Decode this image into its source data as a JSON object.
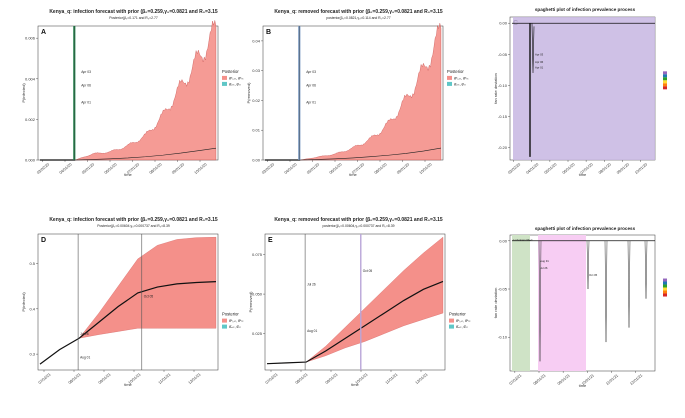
{
  "chart_data": [
    {
      "letter": "A",
      "type": "area",
      "title": "Kenya_q: infection forecast with prior (β₀=0.259,γ₀=0.0821 and R₀=3.15",
      "subtitle": "Posterior(β₀=0.171 and R₀=2.77",
      "xlabel": "time",
      "ylabel": "P(infected)",
      "x_ticks": [
        "03/02/20",
        "04/01/20",
        "05/01/20",
        "06/01/20",
        "07/01/20",
        "08/01/20",
        "09/01/20",
        "10/01/20"
      ],
      "y_ticks": [
        "0.000",
        "0.002",
        "0.004",
        "0.006"
      ],
      "ylim": [
        0,
        0.0066
      ],
      "annotations": [
        "Apr 03",
        "Apr 06",
        "Apr 01"
      ],
      "legend_title": "Posterior",
      "legend_entries": [
        "θ̂ᵇ₀ₛₜ, θ̂ᵇₛₜ",
        "θ̂ₒₛₜ, θ̂ₛₜ"
      ],
      "series": [
        {
          "values": [
            0,
            0,
            0,
            0.0003,
            0.0004,
            0.0007,
            0.0012,
            0.0022,
            0.0036,
            0.005,
            0.0064
          ]
        },
        {
          "values": [
            0,
            0,
            0,
            3e-05,
            6e-05,
            0.0001,
            0.00016,
            0.00024,
            0.00034,
            0.00046,
            0.00058
          ]
        }
      ]
    },
    {
      "letter": "B",
      "type": "area",
      "title": "Kenya_q: removed forecast with prior (β₀=0.259,γ₀=0.0821 and R₀=3.15",
      "subtitle": "posterior(β₀=0.0821,γ₀=0.114 and R₀=2.77",
      "xlabel": "time",
      "ylabel": "P(removed)",
      "x_ticks": [
        "03/02/20",
        "04/01/20",
        "05/01/20",
        "06/01/20",
        "07/01/20",
        "08/01/20",
        "09/01/20",
        "10/01/20"
      ],
      "y_ticks": [
        "0.00",
        "0.01",
        "0.02",
        "0.03",
        "0.04"
      ],
      "ylim": [
        0,
        0.045
      ],
      "annotations": [
        "Apr 03",
        "Apr 06",
        "Apr 01"
      ],
      "legend_title": "Posterior",
      "legend_entries": [
        "θ̂ᵇ₀ₛₜ, θ̂ᵇₛₜ",
        "θ̂ₒₛₜ, θ̂ₛₜ"
      ],
      "series": [
        {
          "values": [
            0,
            0,
            0,
            0.001,
            0.002,
            0.004,
            0.007,
            0.012,
            0.02,
            0.03,
            0.043
          ]
        },
        {
          "values": [
            0,
            0,
            0,
            0.0002,
            0.0004,
            0.0007,
            0.0011,
            0.0016,
            0.0022,
            0.003,
            0.004
          ]
        }
      ]
    },
    {
      "letter": "C",
      "type": "line",
      "title": "spaghetti plot of infection prevalence process",
      "xlabel": "time",
      "ylabel": "fan rate deviation",
      "x_ticks": [
        "03/02/20",
        "04/01/20",
        "05/01/20",
        "06/01/20",
        "07/01/20",
        "08/01/20",
        "09/01/20",
        "10/01/20"
      ],
      "y_ticks": [
        "0.00",
        "-0.05",
        "-0.10",
        "-0.15",
        "-0.20"
      ],
      "ylim": [
        -0.22,
        0.01
      ],
      "annotations": [
        "Apr 03",
        "Apr 06",
        "Apr 01"
      ],
      "legend_colors": [
        "#d62728",
        "#ff7f0e",
        "#ffdd33",
        "#2ca02c",
        "#1f77b4",
        "#9467bd"
      ]
    },
    {
      "letter": "D",
      "type": "area",
      "title": "Kenya_q: infection forecast with prior (β₀=0.259,γ₀=0.0821 and R₀=3.15",
      "subtitle": "Posterior(β₀=0.00604,γ₀=0.000737 and R₀=8.39",
      "xlabel": "time",
      "ylabel": "P(infected)",
      "x_ticks": [
        "07/02/21",
        "08/01/21",
        "09/01/21",
        "10/01/21",
        "11/01/21",
        "12/01/21"
      ],
      "y_ticks": [
        "0.3",
        "0.4",
        "0.5"
      ],
      "ylim": [
        0.265,
        0.565
      ],
      "annotations": [
        "Jul 26",
        "Oct 05",
        "Aug 01"
      ],
      "legend_title": "Posterior",
      "legend_entries": [
        "θ̂ᵇ₀ₛₜ, θ̂ᵇₛₜ",
        "θ̂ₒₛₜ, θ̂ₛₜ"
      ],
      "series": [
        {
          "values": [
            0.278,
            0.31,
            0.335,
            0.37,
            0.405,
            0.435,
            0.448,
            0.455,
            0.458,
            0.46
          ]
        },
        {
          "values": [
            0.278,
            0.31,
            0.335,
            0.39,
            0.45,
            0.51,
            0.54,
            0.553,
            0.557,
            0.558
          ]
        },
        {
          "values": [
            0.278,
            0.31,
            0.335,
            0.343,
            0.35,
            0.357,
            0.357,
            0.357,
            0.357,
            0.357
          ]
        }
      ]
    },
    {
      "letter": "E",
      "type": "area",
      "title": "Kenya_q: removed forecast with prior (β₀=0.259,γ₀=0.0821 and R₀=3.15",
      "subtitle": "posterior(β₀=0.00604,γ₀=0.000737 and R₀=8.39",
      "xlabel": "time",
      "ylabel": "P(removed)",
      "x_ticks": [
        "07/02/21",
        "08/01/21",
        "09/01/21",
        "10/01/21",
        "11/01/21",
        "12/01/21"
      ],
      "y_ticks": [
        "0.025",
        "0.050",
        "0.075"
      ],
      "ylim": [
        0.002,
        0.088
      ],
      "annotations": [
        "Jul 26",
        "Oct 05",
        "Aug 01"
      ],
      "legend_title": "Posterior",
      "legend_entries": [
        "θ̂ᵇ₀ₛₜ, θ̂ᵇₛₜ",
        "θ̂ₒₛₜ, θ̂ₛₜ"
      ],
      "series": [
        {
          "values": [
            0.006,
            0.0065,
            0.007,
            0.014,
            0.022,
            0.03,
            0.038,
            0.046,
            0.053,
            0.058
          ]
        },
        {
          "values": [
            0.006,
            0.0065,
            0.007,
            0.017,
            0.029,
            0.041,
            0.053,
            0.065,
            0.076,
            0.086
          ]
        },
        {
          "values": [
            0.006,
            0.0065,
            0.007,
            0.011,
            0.016,
            0.02,
            0.025,
            0.03,
            0.034,
            0.038
          ]
        }
      ]
    },
    {
      "letter": "F",
      "type": "line",
      "title": "spaghetti plot of infection prevalence process",
      "xlabel": "time",
      "ylabel": "fan rate deviation",
      "x_ticks": [
        "07/02/21",
        "08/01/21",
        "09/01/21",
        "10/01/21",
        "11/01/21",
        "12/01/21"
      ],
      "y_ticks": [
        "0.00",
        "-0.05",
        "-0.10"
      ],
      "ylim": [
        -0.135,
        0.006
      ],
      "annotations": [
        "Aug 31",
        "Jul 26",
        "Oct 05",
        "Lockdown lifted"
      ],
      "legend_colors": [
        "#d62728",
        "#ff7f0e",
        "#ffdd33",
        "#2ca02c",
        "#1f77b4",
        "#9467bd"
      ]
    }
  ]
}
